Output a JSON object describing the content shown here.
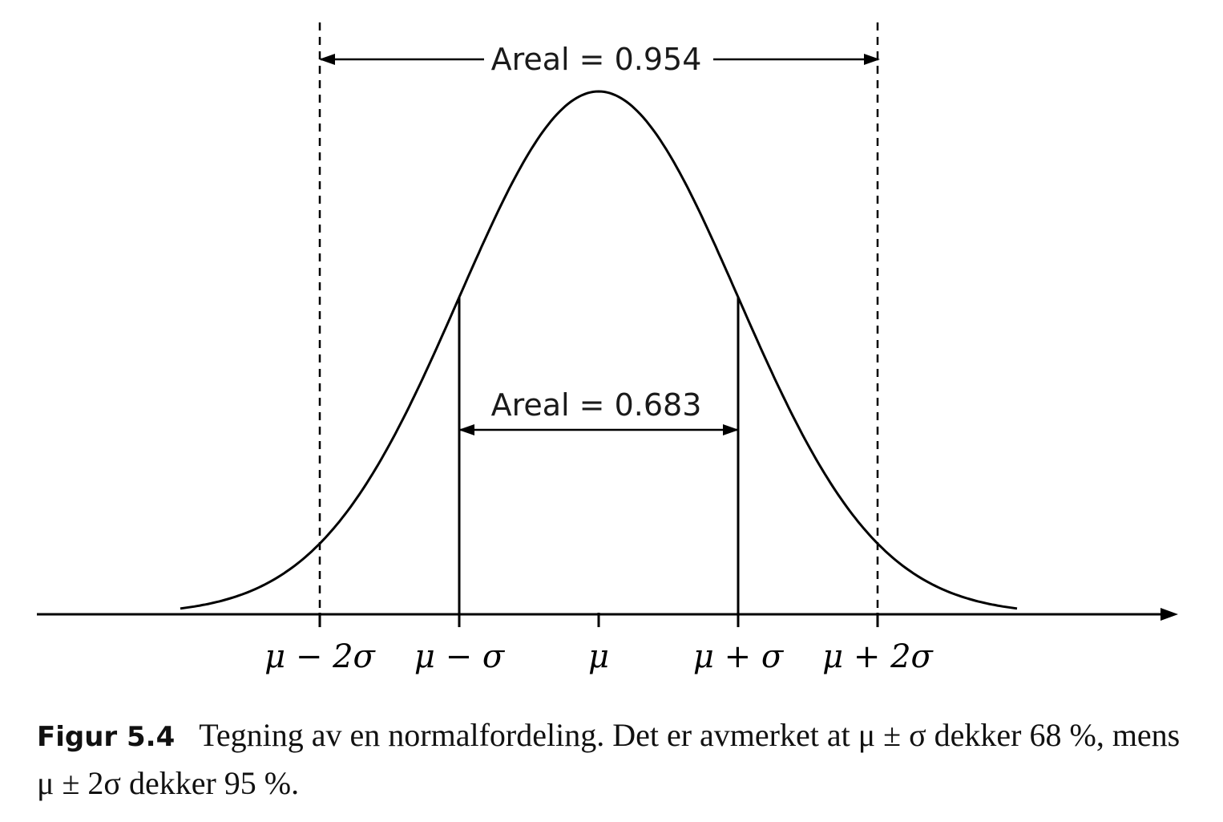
{
  "diagram": {
    "type": "normal_distribution",
    "area_outer_label": "Areal = 0.954",
    "area_inner_label": "Areal = 0.683",
    "ticks": [
      {
        "sigma": -2,
        "label": "μ − 2σ",
        "line": "dashed"
      },
      {
        "sigma": -1,
        "label": "μ − σ",
        "line": "solid"
      },
      {
        "sigma": 0,
        "label": "μ",
        "line": "none"
      },
      {
        "sigma": 1,
        "label": "μ + σ",
        "line": "solid"
      },
      {
        "sigma": 2,
        "label": "μ + 2σ",
        "line": "dashed"
      }
    ],
    "colors": {
      "stroke": "#000000",
      "text": "#1a1a1a"
    }
  },
  "caption": {
    "label": "Figur 5.4",
    "text": "Tegning av en normalfordeling. Det er avmerket at μ ± σ dekker 68 %, mens μ ± 2σ dekker 95 %."
  }
}
